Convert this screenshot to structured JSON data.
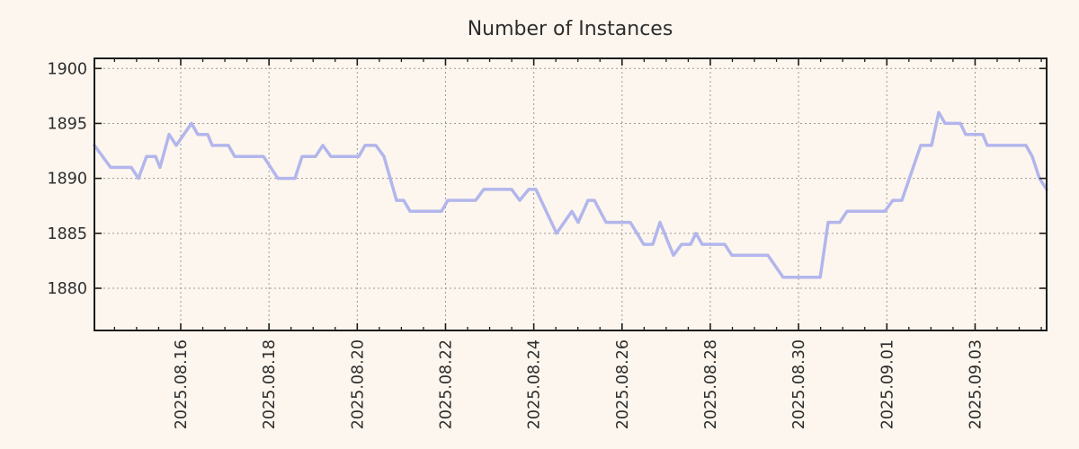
{
  "chart_data": {
    "type": "line",
    "title": "Number of Instances",
    "x_axis": {
      "kind": "time",
      "range_days": [
        -1.956,
        19.621
      ],
      "major_ticks": [
        {
          "t": 0,
          "label": "2025.08.16"
        },
        {
          "t": 2,
          "label": "2025.08.18"
        },
        {
          "t": 4,
          "label": "2025.08.20"
        },
        {
          "t": 6,
          "label": "2025.08.22"
        },
        {
          "t": 8,
          "label": "2025.08.24"
        },
        {
          "t": 10,
          "label": "2025.08.26"
        },
        {
          "t": 12,
          "label": "2025.08.28"
        },
        {
          "t": 14,
          "label": "2025.08.30"
        },
        {
          "t": 16,
          "label": "2025.09.01"
        },
        {
          "t": 18,
          "label": "2025.09.03"
        }
      ],
      "minor_tick_interval_days": 0.5,
      "grid": true
    },
    "y_axis": {
      "range": [
        1876.16,
        1900.92
      ],
      "ticks": [
        1880,
        1885,
        1890,
        1895,
        1900
      ],
      "grid": true
    },
    "legend": null,
    "series": [
      {
        "name": "instances",
        "color": "#b2b6ec",
        "points": [
          [
            -1.956,
            1893
          ],
          [
            -1.589,
            1891
          ],
          [
            -1.121,
            1891
          ],
          [
            -0.958,
            1890
          ],
          [
            -0.774,
            1892
          ],
          [
            -0.57,
            1892
          ],
          [
            -0.469,
            1891
          ],
          [
            -0.265,
            1894
          ],
          [
            -0.102,
            1893
          ],
          [
            0.244,
            1895
          ],
          [
            0.387,
            1894
          ],
          [
            0.611,
            1894
          ],
          [
            0.713,
            1893
          ],
          [
            1.08,
            1893
          ],
          [
            1.222,
            1892
          ],
          [
            1.874,
            1892
          ],
          [
            2.201,
            1890
          ],
          [
            2.588,
            1890
          ],
          [
            2.751,
            1892
          ],
          [
            3.056,
            1892
          ],
          [
            3.219,
            1893
          ],
          [
            3.402,
            1892
          ],
          [
            4.034,
            1892
          ],
          [
            4.177,
            1893
          ],
          [
            4.421,
            1893
          ],
          [
            4.605,
            1892
          ],
          [
            4.89,
            1888
          ],
          [
            5.053,
            1888
          ],
          [
            5.196,
            1887
          ],
          [
            5.909,
            1887
          ],
          [
            6.051,
            1888
          ],
          [
            6.683,
            1888
          ],
          [
            6.866,
            1889
          ],
          [
            7.498,
            1889
          ],
          [
            7.681,
            1888
          ],
          [
            7.885,
            1889
          ],
          [
            8.048,
            1889
          ],
          [
            8.516,
            1885
          ],
          [
            8.863,
            1887
          ],
          [
            9.005,
            1886
          ],
          [
            9.229,
            1888
          ],
          [
            9.372,
            1888
          ],
          [
            9.637,
            1886
          ],
          [
            10.187,
            1886
          ],
          [
            10.492,
            1884
          ],
          [
            10.696,
            1884
          ],
          [
            10.859,
            1886
          ],
          [
            11.165,
            1883
          ],
          [
            11.348,
            1884
          ],
          [
            11.552,
            1884
          ],
          [
            11.674,
            1885
          ],
          [
            11.817,
            1884
          ],
          [
            12.326,
            1884
          ],
          [
            12.489,
            1883
          ],
          [
            13.304,
            1883
          ],
          [
            13.65,
            1881
          ],
          [
            14.49,
            1881
          ],
          [
            14.669,
            1886
          ],
          [
            14.934,
            1886
          ],
          [
            15.097,
            1887
          ],
          [
            15.953,
            1887
          ],
          [
            16.137,
            1888
          ],
          [
            16.34,
            1888
          ],
          [
            16.768,
            1893
          ],
          [
            17.013,
            1893
          ],
          [
            17.176,
            1896
          ],
          [
            17.318,
            1895
          ],
          [
            17.665,
            1895
          ],
          [
            17.787,
            1894
          ],
          [
            18.174,
            1894
          ],
          [
            18.276,
            1893
          ],
          [
            19.152,
            1893
          ],
          [
            19.295,
            1892
          ],
          [
            19.458,
            1890
          ],
          [
            19.621,
            1889
          ]
        ]
      }
    ],
    "style": {
      "background_color": "#fdf6ee",
      "axis_color": "#1c1c1c",
      "grid_color": "#9a9a9a",
      "text_color": "#2d2d2d",
      "line_width": 3.5
    }
  }
}
